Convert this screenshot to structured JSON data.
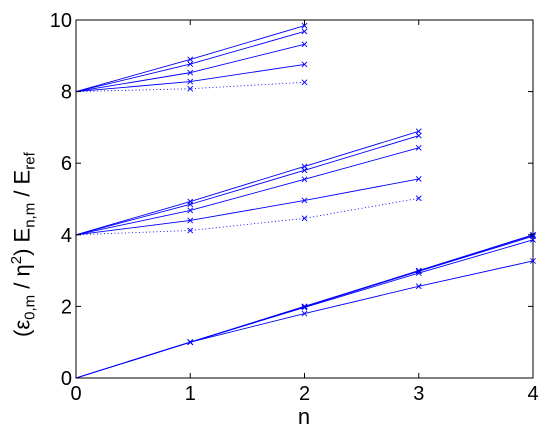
{
  "chart_data": {
    "type": "line",
    "title": "",
    "xlabel": "n",
    "ylabel": "(ε0,m / η2) En,m / Eref",
    "ylabel_parts": {
      "open": "(ε",
      "sub1": "0,m",
      "mid": " / η",
      "sup": "2",
      "close": ") E",
      "sub2": "n,m",
      "slash": " / E",
      "sub3": "ref"
    },
    "xlim": [
      0,
      4
    ],
    "ylim": [
      0,
      10
    ],
    "xticks": [
      "0",
      "1",
      "2",
      "3",
      "4"
    ],
    "yticks": [
      "0",
      "2",
      "4",
      "6",
      "8",
      "10"
    ],
    "grid": false,
    "line_color": "#0000ff",
    "series": [
      {
        "x": [
          0,
          1,
          2,
          3,
          4
        ],
        "y": [
          0,
          1,
          1.8,
          2.56,
          3.27
        ],
        "style": "solid"
      },
      {
        "x": [
          0,
          1,
          2,
          3,
          4
        ],
        "y": [
          0,
          1,
          1.97,
          2.93,
          3.86
        ],
        "style": "solid"
      },
      {
        "x": [
          0,
          1,
          2,
          3,
          4
        ],
        "y": [
          0,
          1,
          1.99,
          2.98,
          3.96
        ],
        "style": "solid"
      },
      {
        "x": [
          0,
          1,
          2,
          3,
          4
        ],
        "y": [
          0,
          1,
          2.0,
          2.99,
          3.99
        ],
        "style": "solid"
      },
      {
        "x": [
          0,
          1,
          2,
          3,
          4
        ],
        "y": [
          0,
          1,
          2.0,
          3.0,
          4.0
        ],
        "style": "solid"
      },
      {
        "x": [
          0,
          1,
          2,
          3
        ],
        "y": [
          4,
          4.12,
          4.46,
          5.02
        ],
        "style": "dotted"
      },
      {
        "x": [
          0,
          1,
          2,
          3
        ],
        "y": [
          4,
          4.4,
          4.96,
          5.56
        ],
        "style": "solid"
      },
      {
        "x": [
          0,
          1,
          2,
          3
        ],
        "y": [
          4,
          4.68,
          5.55,
          6.43
        ],
        "style": "solid"
      },
      {
        "x": [
          0,
          1,
          2,
          3
        ],
        "y": [
          4,
          4.85,
          5.8,
          6.77
        ],
        "style": "solid"
      },
      {
        "x": [
          0,
          1,
          2,
          3
        ],
        "y": [
          4,
          4.93,
          5.91,
          6.89
        ],
        "style": "solid"
      },
      {
        "x": [
          0,
          1,
          2
        ],
        "y": [
          8,
          8.08,
          8.26
        ],
        "style": "dotted"
      },
      {
        "x": [
          0,
          1,
          2
        ],
        "y": [
          8,
          8.28,
          8.76
        ],
        "style": "solid"
      },
      {
        "x": [
          0,
          1,
          2
        ],
        "y": [
          8,
          8.53,
          9.32
        ],
        "style": "solid"
      },
      {
        "x": [
          0,
          1,
          2
        ],
        "y": [
          8,
          8.77,
          9.68
        ],
        "style": "solid"
      },
      {
        "x": [
          0,
          1,
          2
        ],
        "y": [
          8,
          8.9,
          9.84
        ],
        "style": "solid"
      }
    ]
  }
}
